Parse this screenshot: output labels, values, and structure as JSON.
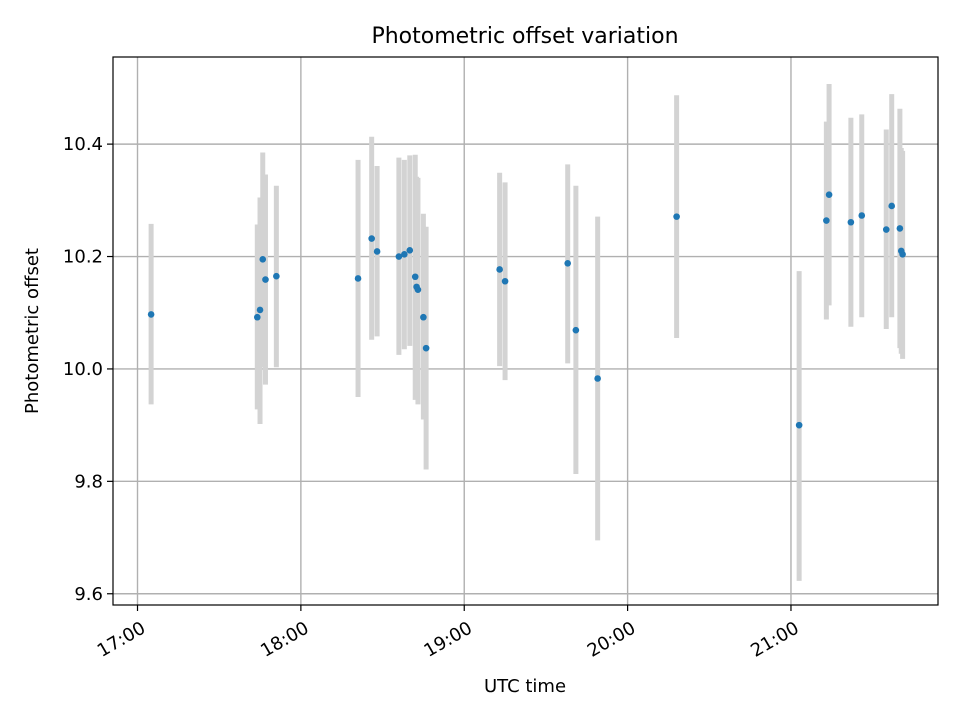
{
  "chart_data": {
    "type": "scatter",
    "title": "Photometric offset variation",
    "xlabel": "UTC time",
    "ylabel": "Photometric offset",
    "xlim": [
      "16:51",
      "21:54"
    ],
    "ylim": [
      9.58,
      10.555
    ],
    "x_ticks": [
      "17:00",
      "18:00",
      "19:00",
      "20:00",
      "21:00"
    ],
    "y_ticks": [
      9.6,
      9.8,
      10.0,
      10.2,
      10.4
    ],
    "y_tick_labels": [
      "9.6",
      "9.8",
      "10.0",
      "10.2",
      "10.4"
    ],
    "grid": true,
    "colors": {
      "point": "#1f77b4",
      "errorbar": "#d3d3d3"
    },
    "points": [
      {
        "x": "17:05",
        "y": 10.097,
        "ylow": 9.937,
        "yhigh": 10.258
      },
      {
        "x": "17:44",
        "y": 10.092,
        "ylow": 9.928,
        "yhigh": 10.257
      },
      {
        "x": "17:45",
        "y": 10.105,
        "ylow": 9.902,
        "yhigh": 10.305
      },
      {
        "x": "17:46",
        "y": 10.195,
        "ylow": 10.003,
        "yhigh": 10.385
      },
      {
        "x": "17:47",
        "y": 10.159,
        "ylow": 9.972,
        "yhigh": 10.346
      },
      {
        "x": "17:51",
        "y": 10.165,
        "ylow": 10.003,
        "yhigh": 10.326
      },
      {
        "x": "18:21",
        "y": 10.161,
        "ylow": 9.95,
        "yhigh": 10.372
      },
      {
        "x": "18:26",
        "y": 10.232,
        "ylow": 10.052,
        "yhigh": 10.413
      },
      {
        "x": "18:28",
        "y": 10.209,
        "ylow": 10.058,
        "yhigh": 10.361
      },
      {
        "x": "18:36",
        "y": 10.2,
        "ylow": 10.025,
        "yhigh": 10.376
      },
      {
        "x": "18:38",
        "y": 10.204,
        "ylow": 10.035,
        "yhigh": 10.372
      },
      {
        "x": "18:40",
        "y": 10.211,
        "ylow": 10.041,
        "yhigh": 10.38
      },
      {
        "x": "18:42",
        "y": 10.164,
        "ylow": 9.945,
        "yhigh": 10.381
      },
      {
        "x": "18:42.5",
        "y": 10.146,
        "ylow": 9.95,
        "yhigh": 10.342
      },
      {
        "x": "18:43",
        "y": 10.141,
        "ylow": 9.937,
        "yhigh": 10.34
      },
      {
        "x": "18:45",
        "y": 10.092,
        "ylow": 9.91,
        "yhigh": 10.276
      },
      {
        "x": "18:46",
        "y": 10.037,
        "ylow": 9.821,
        "yhigh": 10.253
      },
      {
        "x": "19:13",
        "y": 10.177,
        "ylow": 10.005,
        "yhigh": 10.349
      },
      {
        "x": "19:15",
        "y": 10.156,
        "ylow": 9.98,
        "yhigh": 10.332
      },
      {
        "x": "19:38",
        "y": 10.188,
        "ylow": 10.01,
        "yhigh": 10.364
      },
      {
        "x": "19:41",
        "y": 10.069,
        "ylow": 9.813,
        "yhigh": 10.326
      },
      {
        "x": "19:49",
        "y": 9.983,
        "ylow": 9.695,
        "yhigh": 10.271
      },
      {
        "x": "20:18",
        "y": 10.271,
        "ylow": 10.055,
        "yhigh": 10.487
      },
      {
        "x": "21:03",
        "y": 9.9,
        "ylow": 9.623,
        "yhigh": 10.174
      },
      {
        "x": "21:13",
        "y": 10.264,
        "ylow": 10.088,
        "yhigh": 10.44
      },
      {
        "x": "21:14",
        "y": 10.31,
        "ylow": 10.113,
        "yhigh": 10.507
      },
      {
        "x": "21:22",
        "y": 10.261,
        "ylow": 10.075,
        "yhigh": 10.447
      },
      {
        "x": "21:26",
        "y": 10.273,
        "ylow": 10.092,
        "yhigh": 10.453
      },
      {
        "x": "21:35",
        "y": 10.248,
        "ylow": 10.071,
        "yhigh": 10.426
      },
      {
        "x": "21:37",
        "y": 10.29,
        "ylow": 10.092,
        "yhigh": 10.489
      },
      {
        "x": "21:40",
        "y": 10.25,
        "ylow": 10.037,
        "yhigh": 10.463
      },
      {
        "x": "21:40.5",
        "y": 10.21,
        "ylow": 10.027,
        "yhigh": 10.393
      },
      {
        "x": "21:41",
        "y": 10.204,
        "ylow": 10.018,
        "yhigh": 10.388
      }
    ]
  }
}
